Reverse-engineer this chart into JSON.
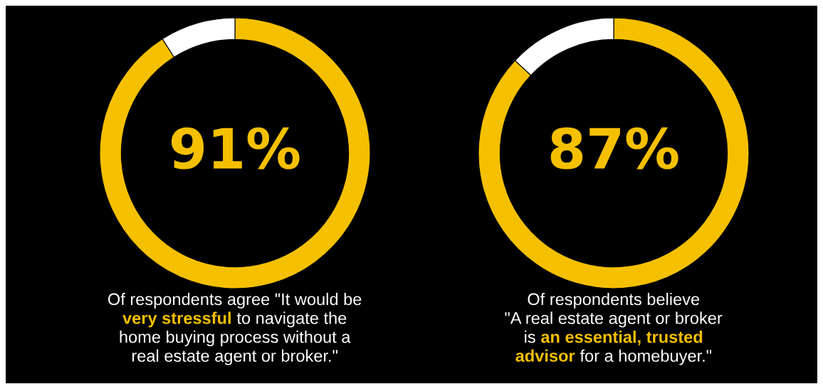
{
  "chart_data": [
    {
      "type": "donut",
      "categories": [
        null,
        null
      ],
      "values": [
        91,
        9
      ],
      "colors": [
        "#f5c000",
        "#ffffff"
      ],
      "value_labels": [
        "91%",
        null
      ],
      "annotations": [
        "Of respondents agree \"It would be\n",
        "very stressful",
        " to navigate the\nhome buying process without a\nreal estate agent or broker.\""
      ]
    },
    {
      "type": "donut",
      "categories": [
        null,
        null
      ],
      "values": [
        87,
        13
      ],
      "colors": [
        "#f5c000",
        "#ffffff"
      ],
      "value_labels": [
        "87%",
        null
      ],
      "annotations": [
        "Of respondents believe\n\"A real estate agent or broker\nis ",
        "an essential, trusted\nadvisor",
        " for a homebuyer.\""
      ]
    }
  ]
}
